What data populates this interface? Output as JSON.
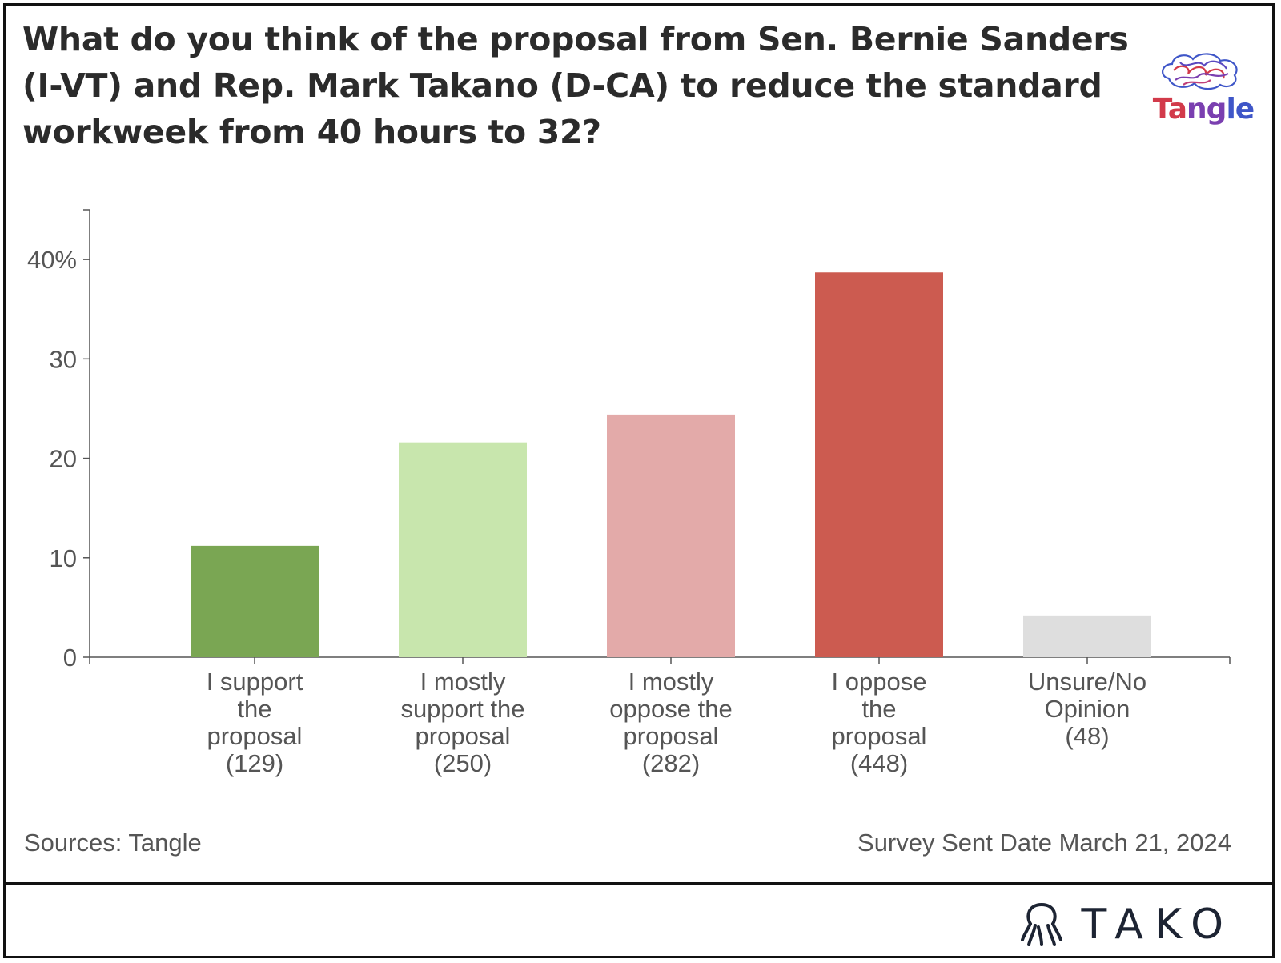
{
  "title_lines": [
    "What do you think of the proposal from Sen. Bernie Sanders",
    "(I-VT) and Rep. Mark Takano (D-CA) to reduce the standard",
    "workweek from 40 hours to 32?"
  ],
  "logo": {
    "text": "Tangle",
    "icon": "brain-icon"
  },
  "footer": {
    "source": "Sources: Tangle",
    "date": "Survey Sent Date March 21, 2024",
    "brand": "TAKO",
    "brand_icon": "octopus-icon"
  },
  "colors": {
    "support": "#7aa653",
    "mostly_support": "#c8e6ad",
    "mostly_oppose": "#e3aaa9",
    "oppose": "#cc5b50",
    "unsure": "#dedede"
  },
  "chart_data": {
    "type": "bar",
    "categories": [
      [
        "I support",
        "the",
        "proposal",
        "(129)"
      ],
      [
        "I mostly",
        "support the",
        "proposal",
        "(250)"
      ],
      [
        "I mostly",
        "oppose the",
        "proposal",
        "(282)"
      ],
      [
        "I oppose",
        "the",
        "proposal",
        "(448)"
      ],
      [
        "Unsure/No",
        "Opinion",
        "(48)"
      ]
    ],
    "values": [
      11.2,
      21.6,
      24.4,
      38.7,
      4.2
    ],
    "bar_colors": [
      "#7aa653",
      "#c8e6ad",
      "#e3aaa9",
      "#cc5b50",
      "#dedede"
    ],
    "yticks": [
      0,
      10,
      20,
      30,
      40
    ],
    "ytick_labels": [
      "0",
      "10",
      "20",
      "30",
      "40%"
    ],
    "ylim": [
      0,
      45
    ],
    "grid": false,
    "legend": "none"
  }
}
